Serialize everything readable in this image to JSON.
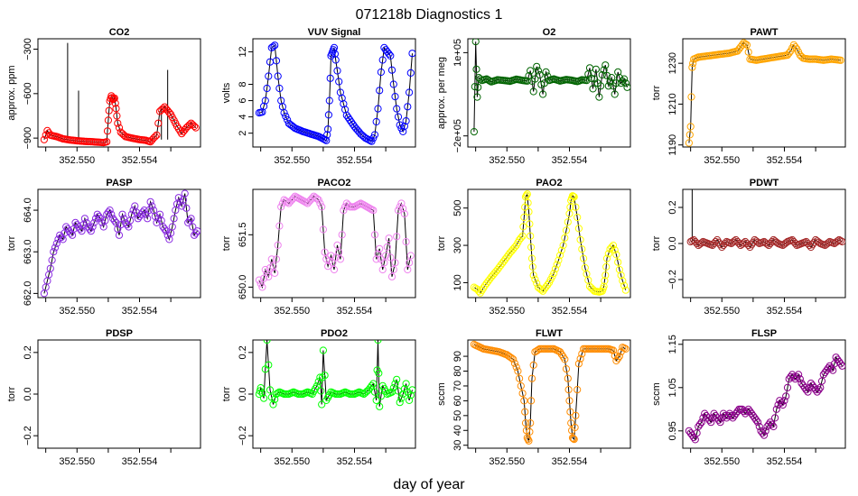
{
  "figure": {
    "title": "071218b   Diagnostics 1",
    "xlabel": "day of year",
    "xticks": [
      352.55,
      352.554
    ],
    "xtick_labels": [
      "352.550",
      "352.554"
    ],
    "xrange": [
      352.5475,
      352.5579
    ]
  },
  "chart_data": [
    {
      "type": "scatter",
      "title": "CO2",
      "ylabel": "approx. ppm",
      "color": "#ff0000",
      "ylim": [
        -960,
        -230
      ],
      "yticks": [
        -300,
        -600,
        -900
      ],
      "ytick_labels": [
        "−300",
        "−600",
        "−900"
      ],
      "spikes": [
        {
          "x": 352.5494,
          "y": -258
        },
        {
          "x": 352.5501,
          "y": -580
        },
        {
          "x": 352.5558,
          "y": -440
        },
        {
          "x": 352.5554,
          "y": -680
        }
      ],
      "x": [
        352.5479,
        352.5481,
        352.5483,
        352.5487,
        352.5491,
        352.5495,
        352.55,
        352.5505,
        352.551,
        352.5514,
        352.5517,
        352.5519,
        352.552,
        352.5521,
        352.5522,
        352.5523,
        352.5524,
        352.5525,
        352.5526,
        352.5528,
        352.5531,
        352.5535,
        352.554,
        352.5544,
        352.5547,
        352.5549,
        352.5551,
        352.5553,
        352.5556,
        352.556,
        352.5564,
        352.5567,
        352.557,
        352.5573,
        352.5576
      ],
      "values": [
        -910,
        -850,
        -880,
        -890,
        -905,
        -912,
        -918,
        -922,
        -925,
        -928,
        -930,
        -925,
        -780,
        -650,
        -615,
        -640,
        -630,
        -700,
        -800,
        -860,
        -890,
        -900,
        -910,
        -915,
        -925,
        -900,
        -880,
        -720,
        -690,
        -740,
        -820,
        -870,
        -830,
        -800,
        -830
      ]
    },
    {
      "type": "scatter",
      "title": "VUV Signal",
      "ylabel": "volts",
      "color": "#0000ff",
      "ylim": [
        0.3,
        13.6
      ],
      "yticks": [
        2,
        4,
        6,
        8,
        12
      ],
      "ytick_labels": [
        "2",
        "4",
        "6",
        "8",
        "12"
      ],
      "x": [
        352.5479,
        352.5481,
        352.5483,
        352.5485,
        352.5487,
        352.5489,
        352.5491,
        352.5493,
        352.5495,
        352.5498,
        352.5502,
        352.5507,
        352.5512,
        352.5517,
        352.552,
        352.5522,
        352.5523,
        352.5524,
        352.5525,
        352.5526,
        352.5527,
        352.5528,
        352.5531,
        352.5535,
        352.554,
        352.5544,
        352.5547,
        352.5549,
        352.5551,
        352.5553,
        352.5555,
        352.5557,
        352.5559,
        352.5561,
        352.5563,
        352.5565,
        352.5567,
        352.5569,
        352.5571,
        352.5573,
        352.5575,
        352.5577
      ],
      "values": [
        4.5,
        4.6,
        6.0,
        9.0,
        12.5,
        12.8,
        9.0,
        6.0,
        4.5,
        3.2,
        2.6,
        2.2,
        1.9,
        1.6,
        1.3,
        1.1,
        2.5,
        6.0,
        11.5,
        12.0,
        12.5,
        11.0,
        7.0,
        4.2,
        2.8,
        1.9,
        1.4,
        1.2,
        1.0,
        1.8,
        5.0,
        9.5,
        12.5,
        12.0,
        11.5,
        8.0,
        5.0,
        3.0,
        2.2,
        3.5,
        7.0,
        11.8
      ]
    },
    {
      "type": "scatter",
      "title": "O2",
      "ylabel": "approx. per meg",
      "color": "#006400",
      "ylim": [
        -240000,
        150000
      ],
      "yticks": [
        100000,
        -200000
      ],
      "ytick_labels": [
        "1e+05",
        "−2e+05"
      ],
      "x": [
        352.5479,
        352.548,
        352.5481,
        352.5482,
        352.5484,
        352.5487,
        352.549,
        352.5494,
        352.5498,
        352.5502,
        352.5506,
        352.551,
        352.5513,
        352.5515,
        352.5517,
        352.5519,
        352.5521,
        352.5523,
        352.5525,
        352.5527,
        352.553,
        352.5534,
        352.5538,
        352.5542,
        352.5545,
        352.5548,
        352.5551,
        352.5553,
        352.5555,
        352.5557,
        352.5559,
        352.5561,
        352.5563,
        352.5565,
        352.5567,
        352.5569,
        352.5571,
        352.5573,
        352.5575,
        352.5577
      ],
      "values": [
        -185000,
        140000,
        -60000,
        10000,
        0,
        5000,
        -5000,
        2000,
        0,
        -3000,
        4000,
        0,
        -2000,
        35000,
        -40000,
        50000,
        20000,
        -50000,
        30000,
        0,
        5000,
        -2000,
        3000,
        0,
        -4000,
        2000,
        0,
        45000,
        -30000,
        40000,
        -60000,
        20000,
        55000,
        -20000,
        10000,
        -50000,
        30000,
        -10000,
        5000,
        -25000
      ]
    },
    {
      "type": "scatter",
      "title": "PAWT",
      "ylabel": "torr",
      "color": "#ffa500",
      "ylim": [
        1189,
        1242
      ],
      "yticks": [
        1190,
        1210,
        1230
      ],
      "ytick_labels": [
        "1190",
        "1210",
        "1230"
      ],
      "x": [
        352.5479,
        352.548,
        352.5481,
        352.5482,
        352.5485,
        352.549,
        352.5495,
        352.55,
        352.5505,
        352.551,
        352.5512,
        352.5514,
        352.5516,
        352.5518,
        352.5522,
        352.5526,
        352.553,
        352.5534,
        352.5538,
        352.5542,
        352.5544,
        352.5546,
        352.5548,
        352.555,
        352.5552,
        352.5556,
        352.556,
        352.5565,
        352.557,
        352.5576
      ],
      "values": [
        1191,
        1199,
        1228,
        1232,
        1233,
        1233.5,
        1234,
        1234.5,
        1235,
        1236,
        1238,
        1240,
        1239,
        1232,
        1231.5,
        1232,
        1232.5,
        1233,
        1233.5,
        1234,
        1236,
        1239,
        1237,
        1234,
        1232.5,
        1232,
        1232,
        1231.5,
        1232,
        1231.5
      ]
    },
    {
      "type": "scatter",
      "title": "PASP",
      "ylabel": "torr",
      "color": "#8a2be2",
      "ylim": [
        661.9,
        664.5
      ],
      "yticks": [
        662.0,
        663.0,
        664.0
      ],
      "ytick_labels": [
        "662.0",
        "663.0",
        "664.0"
      ],
      "x": [
        352.5479,
        352.5481,
        352.5483,
        352.5485,
        352.5487,
        352.5489,
        352.5491,
        352.5493,
        352.5495,
        352.5497,
        352.5499,
        352.5501,
        352.5503,
        352.5505,
        352.5507,
        352.5509,
        352.5511,
        352.5513,
        352.5515,
        352.5517,
        352.5519,
        352.5521,
        352.5523,
        352.5525,
        352.5527,
        352.5529,
        352.5531,
        352.5533,
        352.5535,
        352.5537,
        352.5539,
        352.5541,
        352.5543,
        352.5545,
        352.5547,
        352.5549,
        352.5551,
        352.5553,
        352.5555,
        352.5557,
        352.5559,
        352.5561,
        352.5563,
        352.5565,
        352.5567,
        352.5569,
        352.5571,
        352.5573,
        352.5575,
        352.5577
      ],
      "values": [
        662.0,
        662.3,
        662.6,
        663.0,
        663.2,
        663.4,
        663.3,
        663.6,
        663.5,
        663.4,
        663.7,
        663.6,
        663.5,
        663.8,
        663.6,
        663.5,
        663.7,
        663.9,
        663.8,
        663.6,
        663.9,
        664.0,
        663.8,
        663.7,
        663.4,
        663.9,
        663.7,
        663.6,
        663.9,
        664.1,
        663.8,
        663.9,
        664.0,
        663.8,
        664.2,
        664.0,
        663.7,
        663.9,
        663.6,
        663.5,
        663.3,
        663.6,
        664.0,
        664.3,
        664.1,
        664.4,
        663.7,
        663.8,
        663.4,
        663.5
      ]
    },
    {
      "type": "scatter",
      "title": "PACO2",
      "ylabel": "torr",
      "color": "#ee82ee",
      "ylim": [
        649.7,
        652.8
      ],
      "yticks": [
        650.0,
        651.5
      ],
      "ytick_labels": [
        "650.0",
        "651.5"
      ],
      "x": [
        352.5479,
        352.5481,
        352.5483,
        352.5485,
        352.5487,
        352.5489,
        352.5491,
        352.5493,
        352.5495,
        352.5498,
        352.5502,
        352.5506,
        352.551,
        352.5514,
        352.5517,
        352.5519,
        352.5521,
        352.5523,
        352.5525,
        352.5527,
        352.5529,
        352.5531,
        352.5533,
        352.5535,
        352.5537,
        352.554,
        352.5544,
        352.5548,
        352.5552,
        352.5554,
        352.5556,
        352.5558,
        352.556,
        352.5562,
        352.5564,
        352.5566,
        352.5568,
        352.557,
        352.5572,
        352.5574,
        352.5576
      ],
      "values": [
        650.2,
        650.0,
        650.5,
        650.3,
        650.8,
        650.4,
        651.2,
        652.3,
        652.5,
        652.4,
        652.6,
        652.5,
        652.4,
        652.6,
        652.5,
        652.3,
        651.0,
        650.6,
        650.9,
        650.5,
        651.2,
        650.8,
        652.2,
        652.4,
        652.3,
        652.3,
        652.4,
        652.3,
        652.2,
        650.8,
        651.1,
        650.5,
        650.9,
        651.4,
        650.3,
        650.7,
        652.2,
        652.4,
        652.1,
        650.5,
        650.9
      ]
    },
    {
      "type": "scatter",
      "title": "PAO2",
      "ylabel": "torr",
      "color": "#ffff00",
      "ylim": [
        20,
        600
      ],
      "yticks": [
        100,
        300,
        500
      ],
      "ytick_labels": [
        "100",
        "300",
        "500"
      ],
      "x": [
        352.5479,
        352.5481,
        352.5483,
        352.5486,
        352.549,
        352.5494,
        352.5498,
        352.5502,
        352.5506,
        352.5508,
        352.551,
        352.5511,
        352.5512,
        352.5513,
        352.5514,
        352.5515,
        352.5516,
        352.5517,
        352.552,
        352.5523,
        352.5527,
        352.553,
        352.5533,
        352.5536,
        352.5538,
        352.554,
        352.5541,
        352.5542,
        352.5543,
        352.5545,
        352.5547,
        352.555,
        352.5553,
        352.5556,
        352.5559,
        352.5561,
        352.5562,
        352.5563,
        352.5564,
        352.5566,
        352.5568,
        352.557,
        352.5572,
        352.5574,
        352.5576
      ],
      "values": [
        75,
        65,
        45,
        85,
        130,
        170,
        215,
        260,
        300,
        330,
        350,
        450,
        560,
        575,
        480,
        350,
        230,
        140,
        75,
        55,
        100,
        150,
        220,
        300,
        380,
        470,
        540,
        565,
        560,
        450,
        330,
        180,
        80,
        55,
        50,
        55,
        80,
        140,
        230,
        280,
        300,
        250,
        170,
        110,
        60
      ]
    },
    {
      "type": "scatter",
      "title": "PDWT",
      "ylabel": "torr",
      "color": "#a52a2a",
      "ylim": [
        -0.3,
        0.3
      ],
      "yticks": [
        -0.2,
        0.0,
        0.2
      ],
      "ytick_labels": [
        "−0.2",
        "0.0",
        "0.2"
      ],
      "spikes": [
        {
          "x": 352.5481,
          "y": 0.3
        }
      ],
      "x": [
        352.548,
        352.5482,
        352.5485,
        352.5488,
        352.5491,
        352.5494,
        352.5497,
        352.55,
        352.5503,
        352.5506,
        352.5509,
        352.5512,
        352.5515,
        352.5518,
        352.5521,
        352.5524,
        352.5527,
        352.553,
        352.5533,
        352.5536,
        352.5539,
        352.5542,
        352.5545,
        352.5548,
        352.5551,
        352.5554,
        352.5557,
        352.556,
        352.5563,
        352.5566,
        352.5569,
        352.5572,
        352.5575,
        352.5577
      ],
      "values": [
        0.01,
        0.02,
        -0.01,
        0.01,
        0.0,
        -0.01,
        0.02,
        -0.02,
        0.01,
        0.0,
        0.02,
        -0.01,
        0.01,
        -0.02,
        0.02,
        0.0,
        0.01,
        -0.01,
        0.02,
        0.0,
        -0.01,
        0.01,
        0.02,
        -0.01,
        0.0,
        0.01,
        -0.02,
        0.02,
        0.0,
        -0.01,
        0.01,
        0.0,
        0.02,
        0.01
      ]
    },
    {
      "type": "scatter",
      "title": "PDSP",
      "ylabel": "torr",
      "color": "#000000",
      "ylim": [
        -0.26,
        0.26
      ],
      "yticks": [
        -0.2,
        0.0,
        0.2
      ],
      "ytick_labels": [
        "−0.2",
        "0.0",
        "0.2"
      ],
      "x": [],
      "values": []
    },
    {
      "type": "scatter",
      "title": "PDO2",
      "ylabel": "torr",
      "color": "#00ff00",
      "ylim": [
        -0.26,
        0.26
      ],
      "yticks": [
        -0.2,
        0.0,
        0.2
      ],
      "ytick_labels": [
        "−0.2",
        "0.0",
        "0.2"
      ],
      "x": [
        352.5479,
        352.548,
        352.5482,
        352.5484,
        352.5486,
        352.5488,
        352.549,
        352.5492,
        352.5495,
        352.5498,
        352.5501,
        352.5504,
        352.5507,
        352.551,
        352.5513,
        352.5516,
        352.5518,
        352.5519,
        352.552,
        352.5522,
        352.5525,
        352.5528,
        352.5531,
        352.5534,
        352.5537,
        352.554,
        352.5543,
        352.5546,
        352.5549,
        352.5552,
        352.5554,
        352.5555,
        352.5556,
        352.5558,
        352.5561,
        352.5564,
        352.5567,
        352.5569,
        352.5571,
        352.5573,
        352.5575,
        352.5577
      ],
      "values": [
        0.0,
        0.03,
        -0.02,
        0.26,
        0.02,
        -0.05,
        0.0,
        0.01,
        0.0,
        0.0,
        0.01,
        0.0,
        0.0,
        0.01,
        0.0,
        0.04,
        0.08,
        -0.05,
        0.21,
        -0.03,
        0.01,
        0.0,
        0.0,
        0.01,
        0.0,
        0.0,
        0.01,
        0.0,
        0.02,
        0.05,
        -0.03,
        0.26,
        -0.06,
        0.04,
        0.0,
        0.01,
        0.07,
        -0.04,
        0.0,
        0.05,
        -0.03,
        0.02
      ]
    },
    {
      "type": "scatter",
      "title": "FLWT",
      "ylabel": "sccm",
      "color": "#ff8c00",
      "ylim": [
        28,
        101
      ],
      "yticks": [
        30,
        40,
        50,
        60,
        70,
        80,
        90
      ],
      "ytick_labels": [
        "30",
        "40",
        "50",
        "60",
        "70",
        "80",
        "90"
      ],
      "x": [
        352.5479,
        352.5481,
        352.5485,
        352.549,
        352.5495,
        352.55,
        352.5504,
        352.5507,
        352.5509,
        352.5511,
        352.5512,
        352.5513,
        352.5514,
        352.5515,
        352.5516,
        352.5518,
        352.5521,
        352.5525,
        352.553,
        352.5534,
        352.5537,
        352.5539,
        352.554,
        352.5541,
        352.5542,
        352.5543,
        352.5544,
        352.5546,
        352.5549,
        352.5553,
        352.5557,
        352.5561,
        352.5565,
        352.5568,
        352.557,
        352.5572,
        352.5574,
        352.5576
      ],
      "values": [
        98,
        97,
        95,
        94,
        93,
        91,
        88,
        80,
        70,
        60,
        45,
        35,
        33,
        45,
        75,
        93,
        95,
        95,
        95,
        93,
        88,
        75,
        60,
        45,
        35,
        34,
        50,
        85,
        95,
        95,
        95,
        95,
        95,
        94,
        87,
        90,
        96,
        95
      ]
    },
    {
      "type": "scatter",
      "title": "FLSP",
      "ylabel": "sccm",
      "color": "#8b008b",
      "ylim": [
        0.91,
        1.16
      ],
      "yticks": [
        0.95,
        1.05,
        1.15
      ],
      "ytick_labels": [
        "0.95",
        "1.05",
        "1.15"
      ],
      "x": [
        352.5479,
        352.5481,
        352.5483,
        352.5485,
        352.5487,
        352.5489,
        352.5491,
        352.5493,
        352.5495,
        352.5497,
        352.5499,
        352.5501,
        352.5503,
        352.5505,
        352.5507,
        352.5509,
        352.5511,
        352.5513,
        352.5515,
        352.5517,
        352.5519,
        352.5521,
        352.5523,
        352.5525,
        352.5527,
        352.5529,
        352.5531,
        352.5533,
        352.5535,
        352.5537,
        352.5539,
        352.5541,
        352.5543,
        352.5545,
        352.5547,
        352.5549,
        352.5551,
        352.5553,
        352.5555,
        352.5557,
        352.5559,
        352.5561,
        352.5563,
        352.5565,
        352.5567,
        352.5569,
        352.5571,
        352.5573,
        352.5575,
        352.5577
      ],
      "values": [
        0.95,
        0.94,
        0.93,
        0.96,
        0.97,
        0.99,
        0.98,
        0.97,
        0.99,
        0.98,
        0.97,
        0.99,
        0.98,
        0.99,
        0.98,
        0.99,
        1.0,
        1.0,
        0.99,
        1.0,
        0.99,
        0.98,
        0.97,
        0.95,
        0.94,
        0.96,
        0.97,
        0.96,
        1.0,
        1.02,
        1.01,
        1.03,
        1.07,
        1.08,
        1.07,
        1.08,
        1.06,
        1.05,
        1.04,
        1.06,
        1.05,
        1.04,
        1.05,
        1.08,
        1.09,
        1.1,
        1.09,
        1.12,
        1.11,
        1.1
      ]
    }
  ]
}
